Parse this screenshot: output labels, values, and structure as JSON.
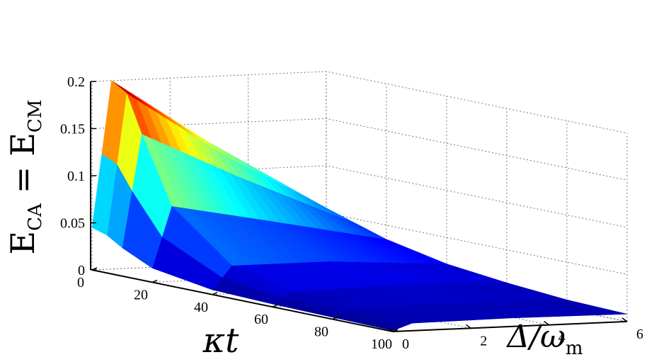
{
  "chart_data": {
    "type": "surface",
    "title": "",
    "zlabel_parts": {
      "main1": "E",
      "sub1": "CA",
      "eq": "=",
      "main2": "E",
      "sub2": "CM"
    },
    "xlabel_parts": {
      "main": "κt"
    },
    "ylabel_parts": {
      "main": "Δ/ω",
      "sub": "m"
    },
    "x_axis": {
      "label": "κt",
      "range": [
        0,
        100
      ],
      "ticks": [
        "0",
        "20",
        "40",
        "60",
        "80",
        "100"
      ]
    },
    "y_axis": {
      "label": "Δ/ω_m",
      "range": [
        0,
        6
      ],
      "ticks": [
        "0",
        "2",
        "4",
        "6"
      ]
    },
    "z_axis": {
      "label": "E_CA = E_CM",
      "range": [
        0,
        0.2
      ],
      "ticks": [
        "0",
        "0.05",
        "0.1",
        "0.15",
        "0.2"
      ]
    },
    "colormap": "jet",
    "colormap_stops": [
      "#00008f",
      "#0000ff",
      "#00ffff",
      "#ffff00",
      "#ff0000",
      "#800000"
    ],
    "grid": true,
    "surface_profile": [
      {
        "kt": 0,
        "delta_0": 0.045,
        "delta_0_5": 0.2,
        "delta_3": 0.13,
        "delta_6": 0.055
      },
      {
        "kt": 5,
        "delta_0": 0.04,
        "delta_0_5": 0.19,
        "delta_3": 0.12,
        "delta_6": 0.05
      },
      {
        "kt": 10,
        "delta_0": 0.03,
        "delta_0_5": 0.15,
        "delta_3": 0.1,
        "delta_6": 0.045
      },
      {
        "kt": 20,
        "delta_0": 0.015,
        "delta_0_5": 0.08,
        "delta_3": 0.06,
        "delta_6": 0.035
      },
      {
        "kt": 40,
        "delta_0": 0.005,
        "delta_0_5": 0.03,
        "delta_3": 0.03,
        "delta_6": 0.022
      },
      {
        "kt": 60,
        "delta_0": 0.003,
        "delta_0_5": 0.015,
        "delta_3": 0.018,
        "delta_6": 0.015
      },
      {
        "kt": 80,
        "delta_0": 0.002,
        "delta_0_5": 0.01,
        "delta_3": 0.012,
        "delta_6": 0.01
      },
      {
        "kt": 100,
        "delta_0": 0.001,
        "delta_0_5": 0.008,
        "delta_3": 0.009,
        "delta_6": 0.008
      }
    ]
  }
}
